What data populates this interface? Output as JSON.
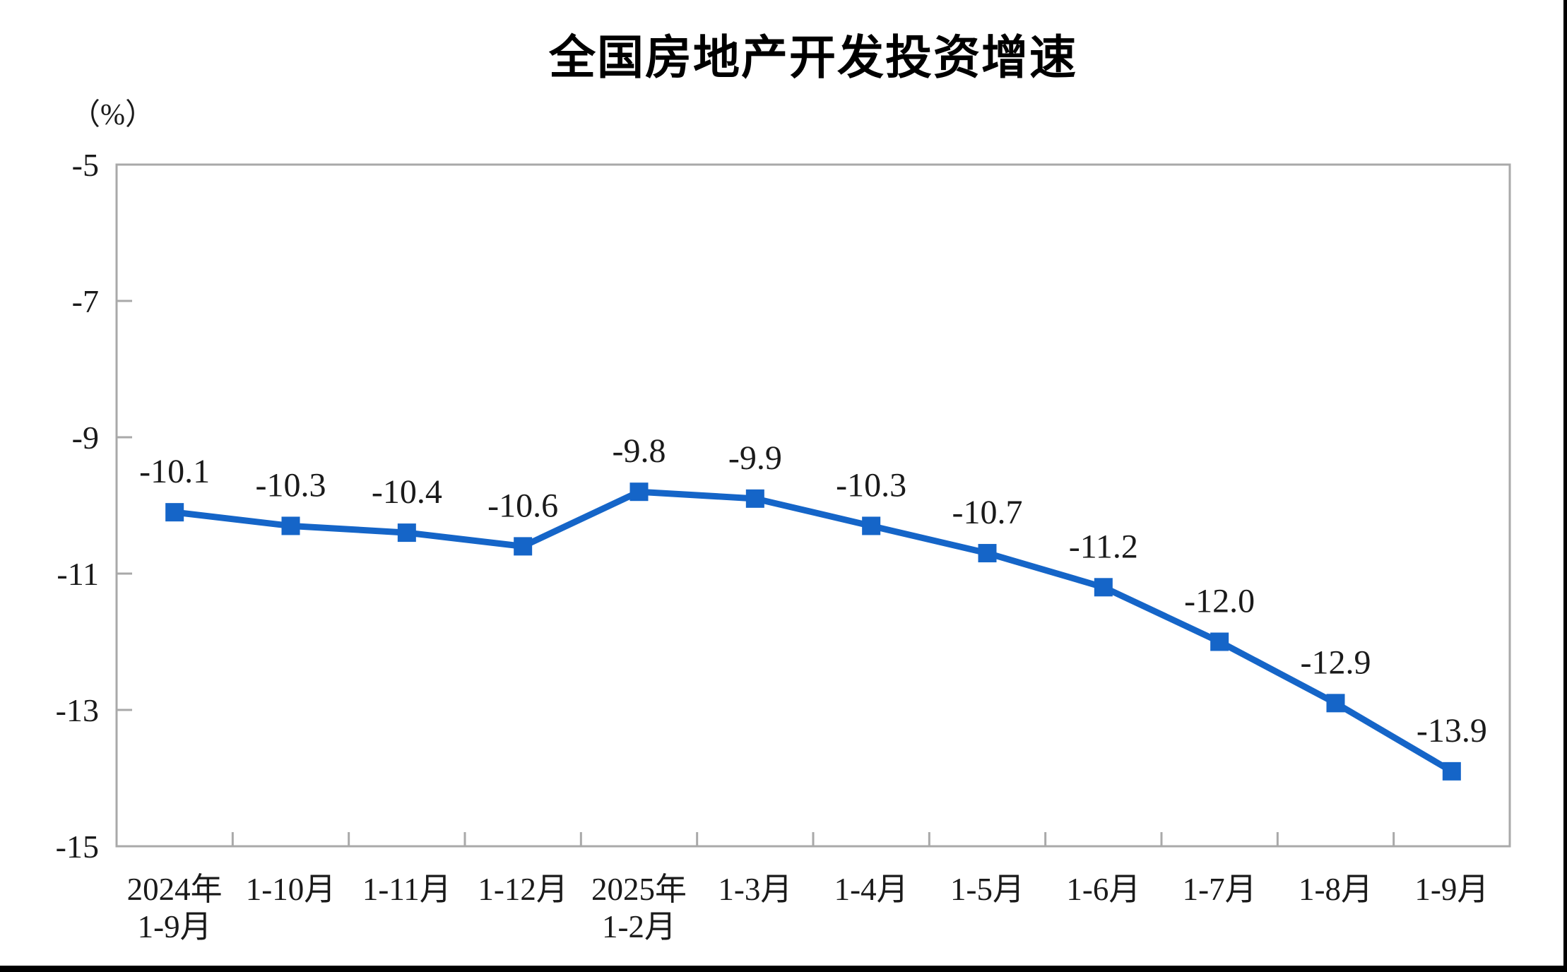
{
  "chart_data": {
    "type": "line",
    "title": "全国房地产开发投资增速",
    "unit_label": "（%）",
    "legend": "none",
    "grid": false,
    "marker": "square",
    "categories": [
      [
        "2024年",
        "1-9月"
      ],
      [
        "1-10月"
      ],
      [
        "1-11月"
      ],
      [
        "1-12月"
      ],
      [
        "2025年",
        "1-2月"
      ],
      [
        "1-3月"
      ],
      [
        "1-4月"
      ],
      [
        "1-5月"
      ],
      [
        "1-6月"
      ],
      [
        "1-7月"
      ],
      [
        "1-8月"
      ],
      [
        "1-9月"
      ]
    ],
    "values": [
      -10.1,
      -10.3,
      -10.4,
      -10.6,
      -9.8,
      -9.9,
      -10.3,
      -10.7,
      -11.2,
      -12.0,
      -12.9,
      -13.9
    ],
    "data_labels": [
      "-10.1",
      "-10.3",
      "-10.4",
      "-10.6",
      "-9.8",
      "-9.9",
      "-10.3",
      "-10.7",
      "-11.2",
      "-12.0",
      "-12.9",
      "-13.9"
    ],
    "y_ticks": [
      -5,
      -7,
      -9,
      -11,
      -13,
      -15
    ],
    "y_tick_labels": [
      "-5",
      "-7",
      "-9",
      "-11",
      "-13",
      "-15"
    ],
    "ylim": [
      -15,
      -5
    ],
    "xlabel": "",
    "ylabel": "（%）"
  },
  "colors": {
    "line": "#1565C8",
    "marker": "#1565C8",
    "plot_border": "#A9A9A9",
    "tick": "#A9A9A9",
    "text": "#1a1a1a",
    "title_text": "#000000",
    "background": "#ffffff",
    "edge_bars": "#000000"
  }
}
